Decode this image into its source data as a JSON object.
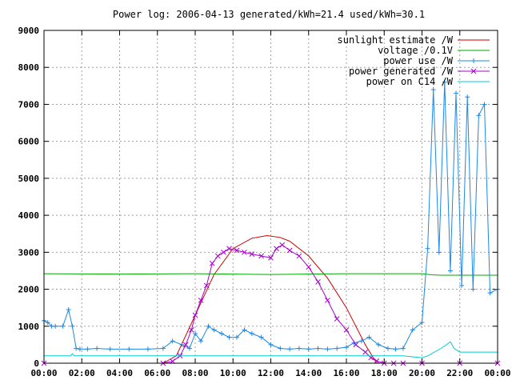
{
  "chart_data": {
    "type": "line",
    "title": "Power log: 2006-04-13 generated/kWh=21.4 used/kWh=30.1",
    "xlabel": "",
    "ylabel": "",
    "xlim": [
      0,
      24
    ],
    "ylim": [
      0,
      9000
    ],
    "grid": true,
    "legend_position": "top-right",
    "x_tick_values": [
      0,
      2,
      4,
      6,
      8,
      10,
      12,
      14,
      16,
      18,
      20,
      22,
      24
    ],
    "x_tick_labels": [
      "00:00",
      "02:00",
      "04:00",
      "06:00",
      "08:00",
      "10:00",
      "12:00",
      "14:00",
      "16:00",
      "18:00",
      "20:00",
      "22:00",
      "00:00"
    ],
    "y_tick_values": [
      0,
      1000,
      2000,
      3000,
      4000,
      5000,
      6000,
      7000,
      8000,
      9000
    ],
    "y_tick_labels": [
      "0",
      "1000",
      "2000",
      "3000",
      "4000",
      "5000",
      "6000",
      "7000",
      "8000",
      "9000"
    ],
    "series": [
      {
        "name": "sunlight estimate /W",
        "color": "#cc0000",
        "marker": "none",
        "x": [
          6.3,
          7,
          8,
          9,
          10,
          11,
          11.8,
          12.5,
          13,
          14,
          15,
          16,
          17,
          17.6
        ],
        "y": [
          0,
          200,
          1300,
          2400,
          3100,
          3380,
          3450,
          3400,
          3300,
          2900,
          2300,
          1500,
          500,
          0
        ]
      },
      {
        "name": "voltage /0.1V",
        "color": "#00aa00",
        "marker": "none",
        "x": [
          0,
          4,
          8,
          12,
          16,
          20,
          20.5,
          21,
          22,
          23,
          24
        ],
        "y": [
          2420,
          2410,
          2420,
          2400,
          2420,
          2420,
          2390,
          2380,
          2380,
          2380,
          2380
        ]
      },
      {
        "name": "power use /W",
        "color": "#1e88e5",
        "marker": "plus",
        "x": [
          0,
          0.2,
          0.4,
          0.6,
          1.0,
          1.3,
          1.5,
          1.7,
          1.9,
          2.3,
          2.8,
          3.5,
          4.5,
          5.5,
          6.3,
          6.8,
          7.3,
          7.7,
          8.0,
          8.3,
          8.7,
          9.0,
          9.4,
          9.8,
          10.2,
          10.6,
          11.0,
          11.5,
          12.0,
          12.5,
          13.0,
          13.5,
          14.0,
          14.5,
          15.0,
          15.5,
          16.0,
          16.4,
          16.8,
          17.2,
          17.7,
          18.2,
          18.6,
          19.0,
          19.5,
          20.0,
          20.3,
          20.6,
          20.9,
          21.2,
          21.5,
          21.8,
          22.1,
          22.4,
          22.7,
          23.0,
          23.3,
          23.6,
          24.0
        ],
        "y": [
          1150,
          1100,
          1000,
          1000,
          1000,
          1450,
          1000,
          400,
          380,
          380,
          400,
          380,
          380,
          380,
          400,
          600,
          500,
          400,
          800,
          600,
          1000,
          900,
          800,
          700,
          700,
          900,
          800,
          700,
          500,
          400,
          380,
          400,
          380,
          400,
          380,
          400,
          430,
          550,
          600,
          700,
          500,
          400,
          380,
          400,
          900,
          1100,
          3100,
          7400,
          3000,
          7600,
          2500,
          7300,
          2100,
          7200,
          2000,
          6700,
          7000,
          1900,
          2000
        ]
      },
      {
        "name": "power generated /W",
        "color": "#aa00cc",
        "marker": "x",
        "x": [
          0,
          6.3,
          6.8,
          7.2,
          7.5,
          7.8,
          8.0,
          8.3,
          8.6,
          8.9,
          9.2,
          9.5,
          9.8,
          10.2,
          10.6,
          11.0,
          11.5,
          12.0,
          12.3,
          12.6,
          13.0,
          13.5,
          14.0,
          14.5,
          15.0,
          15.5,
          16.0,
          16.5,
          17.0,
          17.3,
          17.6,
          18.0,
          18.5,
          19.0,
          20.0,
          22.0,
          24.0
        ],
        "y": [
          0,
          0,
          50,
          200,
          500,
          900,
          1300,
          1700,
          2100,
          2700,
          2900,
          3000,
          3100,
          3050,
          3000,
          2950,
          2900,
          2850,
          3100,
          3200,
          3050,
          2900,
          2600,
          2200,
          1700,
          1200,
          900,
          500,
          300,
          150,
          60,
          0,
          0,
          0,
          0,
          0,
          0
        ]
      },
      {
        "name": "power on C14 /W",
        "color": "#00cccc",
        "marker": "none",
        "x": [
          0,
          1.4,
          1.5,
          1.6,
          4.0,
          6.0,
          8.0,
          12.0,
          16.0,
          18.0,
          19.0,
          20.0,
          20.3,
          21.0,
          21.3,
          21.5,
          21.7,
          22.0,
          24.0
        ],
        "y": [
          200,
          200,
          250,
          200,
          200,
          200,
          200,
          200,
          200,
          200,
          200,
          150,
          200,
          400,
          500,
          580,
          400,
          300,
          300
        ]
      }
    ]
  }
}
